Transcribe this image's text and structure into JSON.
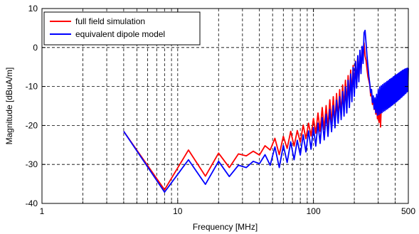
{
  "chart_data": {
    "type": "line",
    "xlabel": "Frequency [MHz]",
    "ylabel": "Magnitude [dBuA/m]",
    "xscale": "log",
    "xlim": [
      1,
      500
    ],
    "ylim": [
      -40,
      10
    ],
    "xticks": [
      1,
      10,
      100,
      500
    ],
    "yticks": [
      -40,
      -30,
      -20,
      -10,
      0,
      10
    ],
    "grid": true,
    "legend_position": "top-left",
    "series": [
      {
        "name": "full field simulation",
        "color": "#ff0000",
        "x": [
          4,
          8,
          12,
          16,
          20,
          24,
          28,
          32,
          36,
          40,
          44,
          48,
          52,
          56,
          60,
          64,
          68,
          72,
          76,
          80,
          84,
          88,
          92,
          96,
          100,
          104,
          108,
          112,
          116,
          120,
          124,
          128,
          132,
          136,
          140,
          144,
          148,
          152,
          156,
          160,
          164,
          168,
          172,
          176,
          180,
          184,
          188,
          192,
          196,
          200,
          204,
          208,
          212,
          216,
          220,
          224,
          228,
          232,
          236,
          240,
          244,
          248,
          252,
          256,
          260,
          264,
          268,
          272,
          276,
          280,
          284,
          288,
          292,
          296,
          300,
          304,
          308,
          312,
          316,
          320,
          324,
          328,
          332,
          336,
          340,
          344,
          348,
          352,
          356,
          360,
          364,
          368,
          372,
          376,
          380,
          384,
          388,
          392,
          396,
          400,
          404,
          408,
          412,
          416,
          420,
          424,
          428,
          432,
          436,
          440,
          444,
          448,
          452,
          456,
          460,
          464,
          468,
          472,
          476,
          480,
          484,
          488,
          492,
          496,
          500
        ],
        "y": [
          -21.5,
          -36.5,
          -26.3,
          -33,
          -27.1,
          -30.8,
          -27.3,
          -27.8,
          -26.6,
          -27.6,
          -25.2,
          -26.3,
          -23.3,
          -27.5,
          -22.8,
          -25.9,
          -21.5,
          -25.3,
          -21.3,
          -24.3,
          -19.9,
          -23.4,
          -19.4,
          -22.7,
          -18.2,
          -22,
          -16.8,
          -21.5,
          -15.4,
          -21,
          -14.9,
          -20.4,
          -13.4,
          -19.8,
          -12.6,
          -19.2,
          -11.8,
          -18.1,
          -10.8,
          -17.2,
          -9.6,
          -15.5,
          -8.4,
          -14.6,
          -7.2,
          -13.4,
          -5.8,
          -12.3,
          -4.6,
          -10.8,
          -3.5,
          -9.6,
          -2.4,
          -8.2,
          -1.3,
          -6.2,
          -0.2,
          -3.1,
          1.2,
          -2.2,
          -3.3,
          -5.5,
          -7.5,
          -8.5,
          -9.6,
          -12.4,
          -12,
          -14.6,
          -13.5,
          -15.9,
          -14.3,
          -17.1,
          -15.1,
          -18.3,
          -15.3,
          -19.2,
          -15.2,
          -20.4,
          -15.4,
          -15.2,
          -15.1,
          -14.9,
          -14.7,
          -14.4,
          -14.1,
          -13.9,
          -13.6,
          -13.3,
          -13,
          -12.7,
          -12.4,
          -12.2,
          -12,
          -11.9,
          -11.8,
          -11.7,
          -11.6,
          -11.5,
          -11.4,
          -11.3,
          -11.3,
          -11.2,
          -11.2,
          -11.1,
          -11.1,
          -11,
          -11,
          -10.9,
          -10.9,
          -10.8,
          -10.8,
          -10.7,
          -10.7,
          -10.6,
          -10.6,
          -10.5,
          -10.5,
          -10.4,
          -10.4,
          -10.3,
          -10.3,
          -10.2,
          -10.2,
          -10.1,
          -10.1
        ]
      },
      {
        "name": "equivalent dipole model",
        "color": "#0000ff",
        "x": [
          4,
          8,
          12,
          16,
          20,
          24,
          28,
          32,
          36,
          40,
          44,
          48,
          52,
          56,
          60,
          64,
          68,
          72,
          76,
          80,
          84,
          88,
          92,
          96,
          100,
          104,
          108,
          112,
          116,
          120,
          124,
          128,
          132,
          136,
          140,
          144,
          148,
          152,
          156,
          160,
          164,
          168,
          172,
          176,
          180,
          184,
          188,
          192,
          196,
          200,
          204,
          208,
          212,
          216,
          220,
          224,
          228,
          232,
          236,
          240,
          244,
          248,
          252,
          256,
          260,
          264,
          268,
          272,
          276,
          280,
          284,
          288,
          292,
          296,
          300,
          304,
          308,
          312,
          316,
          320,
          324,
          328,
          332,
          336,
          340,
          344,
          348,
          352,
          356,
          360,
          364,
          368,
          372,
          376,
          380,
          384,
          388,
          392,
          396,
          400,
          404,
          408,
          412,
          416,
          420,
          424,
          428,
          432,
          436,
          440,
          444,
          448,
          452,
          456,
          460,
          464,
          468,
          472,
          476,
          480,
          484,
          488,
          492,
          496,
          500
        ],
        "y": [
          -21.5,
          -37.1,
          -28.8,
          -35.1,
          -29.2,
          -33.1,
          -30.2,
          -30.8,
          -29.2,
          -29.8,
          -27.5,
          -30.2,
          -25.5,
          -30.8,
          -25.1,
          -29.5,
          -24.2,
          -28.8,
          -23.8,
          -27.6,
          -22.4,
          -26.8,
          -21.4,
          -26.1,
          -20.5,
          -25.3,
          -19.4,
          -24.6,
          -18,
          -23.7,
          -17.1,
          -22.8,
          -15.9,
          -21.6,
          -14.9,
          -20.6,
          -13.5,
          -19.4,
          -12.6,
          -18.5,
          -11.3,
          -17.6,
          -10.1,
          -16.8,
          -8.4,
          -15.4,
          -6.8,
          -13.9,
          -5.1,
          -12.5,
          -3.6,
          -10.4,
          -2.1,
          -8.8,
          -0.7,
          -6.7,
          0.3,
          -4.1,
          3.8,
          4.4,
          1.2,
          -2.2,
          -4.8,
          -7.4,
          -9.3,
          -11.6,
          -10.8,
          -14.1,
          -12.4,
          -15.8,
          -12.9,
          -16.7,
          -12,
          -17.4,
          -10.8,
          -17.2,
          -10.1,
          -16.9,
          -9.8,
          -16.7,
          -9.5,
          -16.4,
          -9.2,
          -16.2,
          -9,
          -15.9,
          -8.7,
          -15.7,
          -8.5,
          -15.4,
          -8.2,
          -15.2,
          -8,
          -14.9,
          -7.8,
          -14.7,
          -7.5,
          -14.4,
          -7.3,
          -14.2,
          -7.1,
          -13.9,
          -6.9,
          -13.7,
          -6.7,
          -13.4,
          -6.5,
          -13.2,
          -6.3,
          -12.9,
          -6.1,
          -12.7,
          -5.9,
          -12.4,
          -5.8,
          -12.2,
          -5.6,
          -11.9,
          -5.5,
          -11.7,
          -5.4,
          -11.4,
          -5.3,
          -11.2,
          -5.3
        ]
      }
    ]
  }
}
